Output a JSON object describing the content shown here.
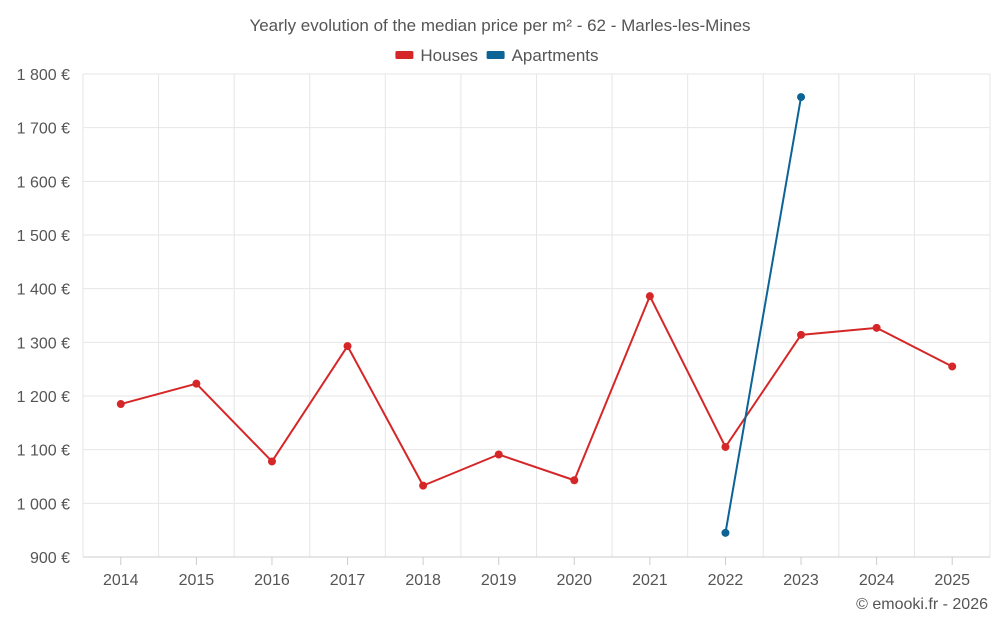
{
  "chart_data": {
    "type": "line",
    "title": "Yearly evolution of the median price per m² - 62 - Marles-les-Mines",
    "categories": [
      "2014",
      "2015",
      "2016",
      "2017",
      "2018",
      "2019",
      "2020",
      "2021",
      "2022",
      "2023",
      "2024",
      "2025"
    ],
    "series": [
      {
        "name": "Houses",
        "color": "#d62728",
        "values": [
          1185,
          1223,
          1078,
          1293,
          1033,
          1091,
          1043,
          1386,
          1105,
          1314,
          1327,
          1255
        ]
      },
      {
        "name": "Apartments",
        "color": "#0b6396",
        "values": [
          null,
          null,
          null,
          null,
          null,
          null,
          null,
          null,
          945,
          1757,
          null,
          null
        ]
      }
    ],
    "ylim": [
      900,
      1800
    ],
    "yticks": [
      900,
      1000,
      1100,
      1200,
      1300,
      1400,
      1500,
      1600,
      1700,
      1800
    ],
    "ytick_labels": [
      "900 €",
      "1 000 €",
      "1 100 €",
      "1 200 €",
      "1 300 €",
      "1 400 €",
      "1 500 €",
      "1 600 €",
      "1 700 €",
      "1 800 €"
    ],
    "legend_position": "top-center",
    "grid": true,
    "xlabel": "",
    "ylabel": ""
  },
  "credit": "© emooki.fr - 2026"
}
